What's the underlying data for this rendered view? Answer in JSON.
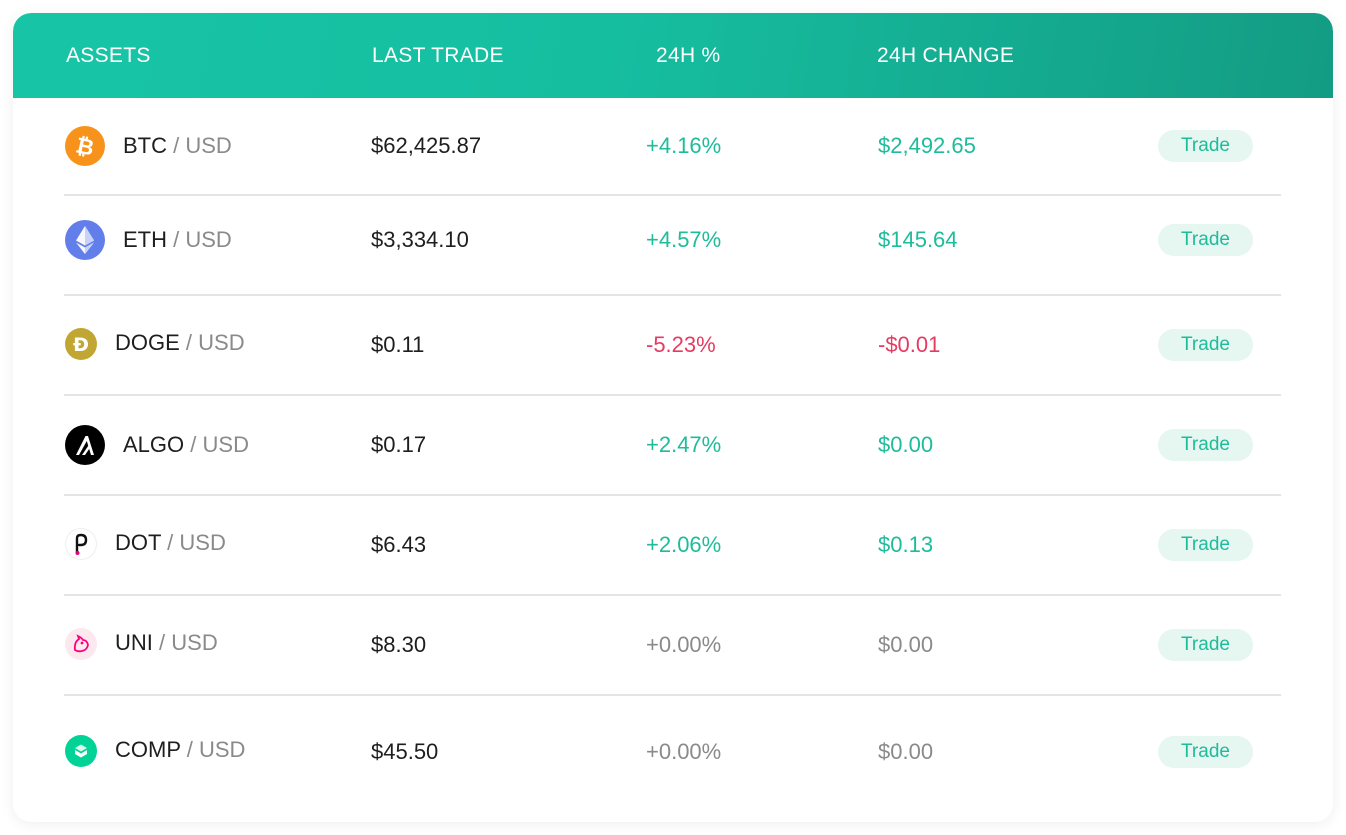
{
  "header": {
    "assets": "ASSETS",
    "last_trade": "LAST TRADE",
    "pct": "24H %",
    "change": "24H CHANGE"
  },
  "colors": {
    "header_start": "#17c5a6",
    "header_end": "#139c84",
    "positive": "#1ebc9a",
    "negative": "#e53b63",
    "neutral": "#8a8a8a"
  },
  "rows": [
    {
      "base": "BTC",
      "sep": "/",
      "quote": "USD",
      "last": "$62,425.87",
      "pct": "+4.16%",
      "change": "$2,492.65",
      "trend": "pos",
      "icon": "bitcoin-icon",
      "trade": "Trade"
    },
    {
      "base": "ETH",
      "sep": "/",
      "quote": "USD",
      "last": "$3,334.10",
      "pct": "+4.57%",
      "change": "$145.64",
      "trend": "pos",
      "icon": "ethereum-icon",
      "trade": "Trade"
    },
    {
      "base": "DOGE",
      "sep": "/",
      "quote": "USD",
      "last": "$0.11",
      "pct": "-5.23%",
      "change": "-$0.01",
      "trend": "neg",
      "icon": "dogecoin-icon",
      "trade": "Trade"
    },
    {
      "base": "ALGO",
      "sep": "/",
      "quote": "USD",
      "last": "$0.17",
      "pct": "+2.47%",
      "change": "$0.00",
      "trend": "pos",
      "icon": "algorand-icon",
      "trade": "Trade"
    },
    {
      "base": "DOT",
      "sep": "/",
      "quote": "USD",
      "last": "$6.43",
      "pct": "+2.06%",
      "change": "$0.13",
      "trend": "pos",
      "icon": "polkadot-icon",
      "trade": "Trade"
    },
    {
      "base": "UNI",
      "sep": "/",
      "quote": "USD",
      "last": "$8.30",
      "pct": "+0.00%",
      "change": "$0.00",
      "trend": "neu",
      "icon": "uniswap-icon",
      "trade": "Trade"
    },
    {
      "base": "COMP",
      "sep": "/",
      "quote": "USD",
      "last": "$45.50",
      "pct": "+0.00%",
      "change": "$0.00",
      "trend": "neu",
      "icon": "compound-icon",
      "trade": "Trade"
    }
  ]
}
